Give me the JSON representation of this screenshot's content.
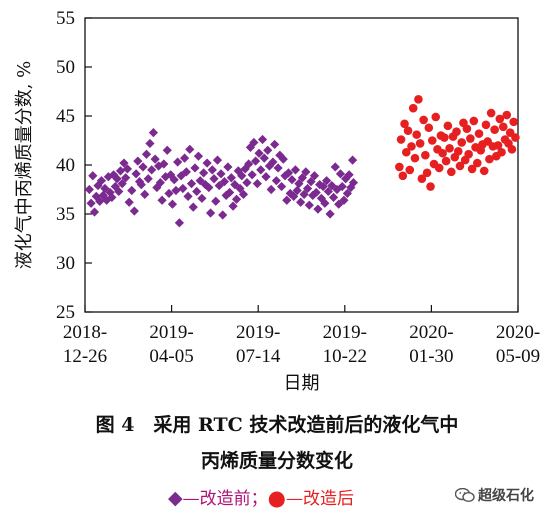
{
  "chart_data": {
    "type": "scatter",
    "xlabel": "日期",
    "ylabel": "液化气中丙烯质量分数, %",
    "ylim": [
      25,
      55
    ],
    "yticks": [
      25,
      30,
      35,
      40,
      45,
      50,
      55
    ],
    "xlim": [
      "2018-12-26",
      "2020-05-09"
    ],
    "xticks": [
      {
        "value": "2018-12-26",
        "line1": "2018-",
        "line2": "12-26"
      },
      {
        "value": "2019-04-05",
        "line1": "2019-",
        "line2": "04-05"
      },
      {
        "value": "2019-07-14",
        "line1": "2019-",
        "line2": "07-14"
      },
      {
        "value": "2019-10-22",
        "line1": "2019-",
        "line2": "10-22"
      },
      {
        "value": "2020-01-30",
        "line1": "2020-",
        "line2": "01-30"
      },
      {
        "value": "2020-05-09",
        "line1": "2020-",
        "line2": "05-09"
      }
    ],
    "grid": false,
    "legend_position": "bottom",
    "series": [
      {
        "name": "改造前",
        "marker": "diamond",
        "color": "#7b2a90",
        "points": [
          [
            "2018-12-31",
            37.5
          ],
          [
            "2019-01-02",
            36.1
          ],
          [
            "2019-01-04",
            38.9
          ],
          [
            "2019-01-06",
            35.2
          ],
          [
            "2019-01-08",
            36.8
          ],
          [
            "2019-01-10",
            37.9
          ],
          [
            "2019-01-12",
            36.3
          ],
          [
            "2019-01-14",
            38.4
          ],
          [
            "2019-01-16",
            36.9
          ],
          [
            "2019-01-18",
            37.6
          ],
          [
            "2019-01-20",
            36.4
          ],
          [
            "2019-01-22",
            38.8
          ],
          [
            "2019-01-24",
            37.2
          ],
          [
            "2019-01-26",
            36.7
          ],
          [
            "2019-01-28",
            39.0
          ],
          [
            "2019-01-30",
            37.8
          ],
          [
            "2019-02-01",
            38.6
          ],
          [
            "2019-02-03",
            37.3
          ],
          [
            "2019-02-05",
            39.4
          ],
          [
            "2019-02-07",
            38.1
          ],
          [
            "2019-02-09",
            40.2
          ],
          [
            "2019-02-11",
            38.7
          ],
          [
            "2019-02-13",
            39.6
          ],
          [
            "2019-02-15",
            36.2
          ],
          [
            "2019-02-18",
            37.4
          ],
          [
            "2019-02-21",
            35.3
          ],
          [
            "2019-02-23",
            39.1
          ],
          [
            "2019-02-25",
            40.4
          ],
          [
            "2019-02-27",
            38.3
          ],
          [
            "2019-03-01",
            38.0
          ],
          [
            "2019-03-03",
            39.8
          ],
          [
            "2019-03-05",
            37.0
          ],
          [
            "2019-03-07",
            41.1
          ],
          [
            "2019-03-09",
            38.6
          ],
          [
            "2019-03-11",
            42.2
          ],
          [
            "2019-03-13",
            39.5
          ],
          [
            "2019-03-15",
            43.3
          ],
          [
            "2019-03-17",
            40.6
          ],
          [
            "2019-03-19",
            37.7
          ],
          [
            "2019-03-21",
            39.9
          ],
          [
            "2019-03-23",
            38.2
          ],
          [
            "2019-03-25",
            36.4
          ],
          [
            "2019-03-27",
            40.1
          ],
          [
            "2019-03-29",
            38.8
          ],
          [
            "2019-03-31",
            41.5
          ],
          [
            "2019-04-02",
            37.1
          ],
          [
            "2019-04-04",
            39.0
          ],
          [
            "2019-04-06",
            36.0
          ],
          [
            "2019-04-08",
            38.5
          ],
          [
            "2019-04-10",
            37.4
          ],
          [
            "2019-04-12",
            40.3
          ],
          [
            "2019-04-14",
            34.1
          ],
          [
            "2019-04-16",
            38.9
          ],
          [
            "2019-04-18",
            37.6
          ],
          [
            "2019-04-20",
            40.7
          ],
          [
            "2019-04-22",
            39.3
          ],
          [
            "2019-04-24",
            36.8
          ],
          [
            "2019-04-26",
            41.6
          ],
          [
            "2019-04-28",
            38.1
          ],
          [
            "2019-04-30",
            35.7
          ],
          [
            "2019-05-02",
            39.7
          ],
          [
            "2019-05-04",
            37.3
          ],
          [
            "2019-05-06",
            40.9
          ],
          [
            "2019-05-08",
            38.4
          ],
          [
            "2019-05-10",
            36.6
          ],
          [
            "2019-05-12",
            39.2
          ],
          [
            "2019-05-14",
            38.0
          ],
          [
            "2019-05-16",
            40.2
          ],
          [
            "2019-05-18",
            37.7
          ],
          [
            "2019-05-20",
            35.1
          ],
          [
            "2019-05-22",
            39.5
          ],
          [
            "2019-05-24",
            38.6
          ],
          [
            "2019-05-26",
            36.3
          ],
          [
            "2019-05-28",
            40.5
          ],
          [
            "2019-05-30",
            37.9
          ],
          [
            "2019-06-01",
            39.1
          ],
          [
            "2019-06-03",
            34.9
          ],
          [
            "2019-06-05",
            38.3
          ],
          [
            "2019-06-07",
            36.9
          ],
          [
            "2019-06-09",
            39.8
          ],
          [
            "2019-06-11",
            37.2
          ],
          [
            "2019-06-13",
            38.7
          ],
          [
            "2019-06-15",
            35.8
          ],
          [
            "2019-06-17",
            38.0
          ],
          [
            "2019-06-19",
            36.5
          ],
          [
            "2019-06-21",
            39.4
          ],
          [
            "2019-06-23",
            37.6
          ],
          [
            "2019-06-25",
            38.9
          ],
          [
            "2019-06-27",
            37.0
          ],
          [
            "2019-06-29",
            39.6
          ],
          [
            "2019-07-01",
            38.2
          ],
          [
            "2019-07-03",
            40.1
          ],
          [
            "2019-07-05",
            41.8
          ],
          [
            "2019-07-07",
            39.0
          ],
          [
            "2019-07-09",
            42.3
          ],
          [
            "2019-07-11",
            40.4
          ],
          [
            "2019-07-13",
            38.1
          ],
          [
            "2019-07-15",
            41.2
          ],
          [
            "2019-07-17",
            39.5
          ],
          [
            "2019-07-19",
            42.6
          ],
          [
            "2019-07-21",
            40.7
          ],
          [
            "2019-07-23",
            38.8
          ],
          [
            "2019-07-25",
            41.5
          ],
          [
            "2019-07-27",
            39.9
          ],
          [
            "2019-07-29",
            37.5
          ],
          [
            "2019-07-31",
            40.3
          ],
          [
            "2019-08-02",
            42.1
          ],
          [
            "2019-08-04",
            38.4
          ],
          [
            "2019-08-06",
            39.7
          ],
          [
            "2019-08-08",
            41.0
          ],
          [
            "2019-08-10",
            37.8
          ],
          [
            "2019-08-12",
            40.6
          ],
          [
            "2019-08-14",
            38.9
          ],
          [
            "2019-08-16",
            36.4
          ],
          [
            "2019-08-18",
            39.2
          ],
          [
            "2019-08-20",
            37.1
          ],
          [
            "2019-08-22",
            38.5
          ],
          [
            "2019-08-24",
            36.8
          ],
          [
            "2019-08-26",
            39.5
          ],
          [
            "2019-08-28",
            37.4
          ],
          [
            "2019-08-30",
            38.1
          ],
          [
            "2019-09-01",
            36.2
          ],
          [
            "2019-09-03",
            38.7
          ],
          [
            "2019-09-05",
            37.0
          ],
          [
            "2019-09-07",
            39.3
          ],
          [
            "2019-09-09",
            37.6
          ],
          [
            "2019-09-11",
            35.9
          ],
          [
            "2019-09-13",
            38.3
          ],
          [
            "2019-09-15",
            36.9
          ],
          [
            "2019-09-17",
            38.9
          ],
          [
            "2019-09-19",
            37.2
          ],
          [
            "2019-09-21",
            35.5
          ],
          [
            "2019-09-23",
            38.0
          ],
          [
            "2019-09-25",
            36.6
          ],
          [
            "2019-09-27",
            37.8
          ],
          [
            "2019-09-29",
            36.1
          ],
          [
            "2019-10-01",
            38.4
          ],
          [
            "2019-10-03",
            37.3
          ],
          [
            "2019-10-05",
            35.0
          ],
          [
            "2019-10-07",
            37.9
          ],
          [
            "2019-10-09",
            36.7
          ],
          [
            "2019-10-11",
            39.8
          ],
          [
            "2019-10-13",
            37.5
          ],
          [
            "2019-10-15",
            36.0
          ],
          [
            "2019-10-17",
            39.1
          ],
          [
            "2019-10-19",
            37.8
          ],
          [
            "2019-10-21",
            36.4
          ],
          [
            "2019-10-23",
            38.6
          ],
          [
            "2019-10-25",
            37.1
          ],
          [
            "2019-10-27",
            39.0
          ],
          [
            "2019-10-29",
            37.7
          ],
          [
            "2019-10-31",
            40.5
          ],
          [
            "2019-11-01",
            38.2
          ]
        ]
      },
      {
        "name": "改造后",
        "marker": "circle",
        "color": "#e62020",
        "points": [
          [
            "2019-12-24",
            39.8
          ],
          [
            "2019-12-26",
            42.6
          ],
          [
            "2019-12-28",
            38.9
          ],
          [
            "2019-12-30",
            44.2
          ],
          [
            "2020-01-01",
            41.3
          ],
          [
            "2020-01-03",
            43.5
          ],
          [
            "2020-01-05",
            39.5
          ],
          [
            "2020-01-07",
            41.9
          ],
          [
            "2020-01-09",
            45.8
          ],
          [
            "2020-01-11",
            40.7
          ],
          [
            "2020-01-13",
            43.1
          ],
          [
            "2020-01-15",
            46.7
          ],
          [
            "2020-01-17",
            42.2
          ],
          [
            "2020-01-19",
            38.6
          ],
          [
            "2020-01-21",
            44.6
          ],
          [
            "2020-01-23",
            41.0
          ],
          [
            "2020-01-25",
            39.2
          ],
          [
            "2020-01-27",
            43.8
          ],
          [
            "2020-01-29",
            37.8
          ],
          [
            "2020-01-31",
            42.5
          ],
          [
            "2020-02-02",
            40.1
          ],
          [
            "2020-02-04",
            44.9
          ],
          [
            "2020-02-06",
            41.6
          ],
          [
            "2020-02-08",
            39.7
          ],
          [
            "2020-02-10",
            43.0
          ],
          [
            "2020-02-12",
            41.2
          ],
          [
            "2020-02-14",
            42.8
          ],
          [
            "2020-02-16",
            40.4
          ],
          [
            "2020-02-18",
            44.0
          ],
          [
            "2020-02-20",
            41.7
          ],
          [
            "2020-02-22",
            39.3
          ],
          [
            "2020-02-24",
            42.9
          ],
          [
            "2020-02-26",
            40.8
          ],
          [
            "2020-02-28",
            43.4
          ],
          [
            "2020-03-01",
            41.4
          ],
          [
            "2020-03-03",
            39.9
          ],
          [
            "2020-03-05",
            42.3
          ],
          [
            "2020-03-07",
            44.3
          ],
          [
            "2020-03-09",
            40.5
          ],
          [
            "2020-03-11",
            43.7
          ],
          [
            "2020-03-13",
            41.1
          ],
          [
            "2020-03-15",
            42.7
          ],
          [
            "2020-03-17",
            39.6
          ],
          [
            "2020-03-19",
            44.5
          ],
          [
            "2020-03-21",
            41.8
          ],
          [
            "2020-03-23",
            40.2
          ],
          [
            "2020-03-25",
            43.2
          ],
          [
            "2020-03-27",
            41.5
          ],
          [
            "2020-03-29",
            42.1
          ],
          [
            "2020-03-31",
            39.4
          ],
          [
            "2020-04-02",
            44.1
          ],
          [
            "2020-04-04",
            42.4
          ],
          [
            "2020-04-06",
            40.6
          ],
          [
            "2020-04-08",
            45.3
          ],
          [
            "2020-04-10",
            41.9
          ],
          [
            "2020-04-12",
            43.6
          ],
          [
            "2020-04-14",
            40.9
          ],
          [
            "2020-04-16",
            42.0
          ],
          [
            "2020-04-18",
            44.7
          ],
          [
            "2020-04-20",
            41.3
          ],
          [
            "2020-04-22",
            43.9
          ],
          [
            "2020-04-24",
            42.6
          ],
          [
            "2020-04-26",
            45.1
          ],
          [
            "2020-04-28",
            42.2
          ],
          [
            "2020-04-30",
            43.3
          ],
          [
            "2020-05-02",
            41.6
          ],
          [
            "2020-05-04",
            44.4
          ],
          [
            "2020-05-06",
            42.8
          ]
        ]
      }
    ]
  },
  "caption": {
    "line1": "图 4　采用 RTC 技术改造前后的液化气中",
    "line2": "丙烯质量分数变化"
  },
  "legend": {
    "marker1": "◆",
    "text1": "—改造前；",
    "marker2": "●",
    "text2": "—改造后"
  },
  "watermark": {
    "text": "超级石化",
    "icon": "wechat-icon"
  }
}
